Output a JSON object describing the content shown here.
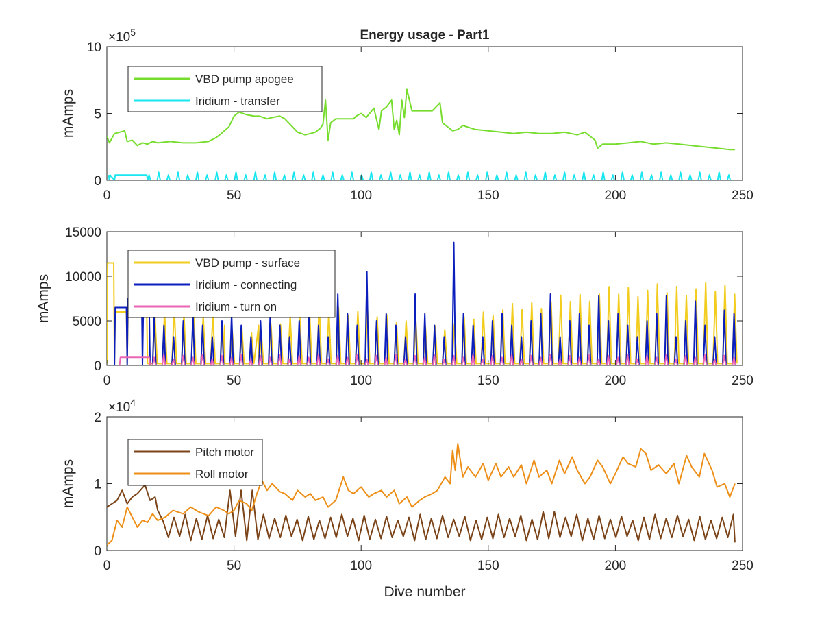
{
  "figure": {
    "title": "Energy usage - Part1",
    "xlabel": "Dive number"
  },
  "chart_data": [
    {
      "type": "line",
      "title": "Energy usage - Part1",
      "xlabel": "",
      "ylabel": "mAmps",
      "xlim": [
        0,
        250
      ],
      "ylim": [
        0,
        1000000
      ],
      "xticks": [
        "0",
        "50",
        "100",
        "150",
        "200",
        "250"
      ],
      "yticks": [
        "0",
        "5",
        "10"
      ],
      "ytick_values": [
        0,
        500000,
        1000000
      ],
      "exponent": {
        "base": "×10",
        "power": "5"
      },
      "grid": false,
      "legend_position": "top-left",
      "series": [
        {
          "name": "VBD pump apogee",
          "color": "#77dd2d",
          "kind": "smooth",
          "x": [
            0,
            1,
            3,
            5,
            7,
            8,
            10,
            12,
            14,
            16,
            18,
            20,
            25,
            30,
            35,
            40,
            43,
            45,
            48,
            50,
            52,
            55,
            58,
            60,
            63,
            65,
            68,
            70,
            73,
            75,
            78,
            80,
            82,
            84,
            85,
            86,
            87,
            88,
            90,
            92,
            95,
            97,
            98,
            100,
            102,
            105,
            107,
            108,
            110,
            112,
            113,
            114,
            115,
            116,
            117,
            118,
            120,
            122,
            125,
            128,
            130,
            131,
            132,
            134,
            136,
            138,
            140,
            145,
            150,
            155,
            160,
            165,
            170,
            175,
            180,
            185,
            188,
            190,
            192,
            193,
            195,
            200,
            205,
            210,
            215,
            220,
            225,
            230,
            235,
            240,
            245,
            247
          ],
          "y": [
            330000,
            280000,
            350000,
            360000,
            370000,
            290000,
            300000,
            260000,
            280000,
            270000,
            290000,
            280000,
            290000,
            280000,
            280000,
            290000,
            320000,
            350000,
            400000,
            480000,
            510000,
            490000,
            480000,
            480000,
            460000,
            470000,
            480000,
            460000,
            400000,
            360000,
            340000,
            350000,
            360000,
            390000,
            420000,
            600000,
            300000,
            430000,
            460000,
            460000,
            460000,
            460000,
            480000,
            500000,
            470000,
            540000,
            380000,
            520000,
            550000,
            600000,
            380000,
            450000,
            340000,
            600000,
            470000,
            680000,
            520000,
            520000,
            520000,
            520000,
            560000,
            580000,
            430000,
            400000,
            370000,
            380000,
            410000,
            380000,
            370000,
            360000,
            350000,
            360000,
            350000,
            350000,
            360000,
            340000,
            360000,
            330000,
            300000,
            240000,
            270000,
            270000,
            280000,
            290000,
            270000,
            280000,
            270000,
            260000,
            250000,
            240000,
            230000,
            230000
          ]
        },
        {
          "name": "Iridium - transfer",
          "color": "#19e6ef",
          "kind": "spike",
          "base": 0,
          "x0": 16,
          "x1": 247,
          "period": 3.8,
          "width": 1.2,
          "amps": [
            40000,
            60000,
            40000,
            60000
          ],
          "extra": [
            [
              1,
              1,
              40000
            ],
            [
              3,
              16,
              40000
            ]
          ]
        }
      ]
    },
    {
      "type": "line",
      "title": "",
      "xlabel": "",
      "ylabel": "mAmps",
      "xlim": [
        0,
        250
      ],
      "ylim": [
        0,
        15000
      ],
      "xticks": [
        "0",
        "50",
        "100",
        "150",
        "200",
        "250"
      ],
      "yticks": [
        "0",
        "5000",
        "10000",
        "15000"
      ],
      "ytick_values": [
        0,
        5000,
        10000,
        15000
      ],
      "grid": false,
      "legend_position": "top-left",
      "series": [
        {
          "name": "VBD pump - surface",
          "color": "#f2cc1e",
          "kind": "spike",
          "base": 200,
          "x0": 18,
          "x1": 247,
          "period": 3.8,
          "width": 1.8,
          "amps": [
            5500,
            6500,
            7000,
            5000
          ],
          "trend": [
            [
              18,
              6500
            ],
            [
              40,
              6500
            ],
            [
              45,
              4500
            ],
            [
              60,
              4200
            ],
            [
              80,
              7000
            ],
            [
              100,
              6500
            ],
            [
              130,
              4500
            ],
            [
              150,
              6500
            ],
            [
              180,
              8000
            ],
            [
              200,
              9000
            ],
            [
              247,
              9400
            ]
          ],
          "extra": [
            [
              0,
              3,
              11500
            ],
            [
              3,
              8,
              6000
            ],
            [
              8,
              16,
              5500
            ],
            [
              46,
              60,
              4500
            ]
          ]
        },
        {
          "name": "Iridium - connecting",
          "color": "#0c1fbd",
          "kind": "spike",
          "base": 0,
          "x0": 18,
          "x1": 247,
          "period": 3.8,
          "width": 1.3,
          "amps": [
            5800,
            4500,
            3200,
            5000
          ],
          "peaks": [
            [
              100,
              10500
            ],
            [
              137,
              13800
            ],
            [
              90,
              8000
            ],
            [
              119,
              8000
            ],
            [
              175,
              8000
            ],
            [
              191,
              7800
            ],
            [
              220,
              7800
            ],
            [
              231,
              7200
            ],
            [
              244,
              6200
            ]
          ],
          "extra": [
            [
              3,
              8,
              6500
            ],
            [
              8,
              14,
              7500
            ],
            [
              14,
              17,
              5500
            ]
          ]
        },
        {
          "name": "Iridium - turn on",
          "color": "#e866b4",
          "kind": "spike",
          "base": 0,
          "x0": 18,
          "x1": 247,
          "period": 3.8,
          "width": 1.2,
          "amps": [
            900,
            1200,
            700,
            1100
          ],
          "extra": [
            [
              5,
              17,
              900
            ]
          ]
        }
      ]
    },
    {
      "type": "line",
      "title": "",
      "xlabel": "Dive number",
      "ylabel": "mAmps",
      "xlim": [
        0,
        250
      ],
      "ylim": [
        0,
        20000
      ],
      "xticks": [
        "0",
        "50",
        "100",
        "150",
        "200",
        "250"
      ],
      "yticks": [
        "0",
        "1",
        "2"
      ],
      "ytick_values": [
        0,
        10000,
        20000
      ],
      "exponent": {
        "base": "×10",
        "power": "4"
      },
      "grid": false,
      "legend_position": "top-left",
      "series": [
        {
          "name": "Pitch motor",
          "color": "#7b4318",
          "kind": "pitch",
          "x": [
            0,
            2,
            4,
            6,
            8,
            10,
            12,
            15,
            17,
            19,
            20,
            22
          ],
          "y": [
            6500,
            7000,
            7500,
            9000,
            7000,
            8000,
            8500,
            9800,
            7500,
            8000,
            6000,
            4500
          ]
        },
        {
          "name": "Roll motor",
          "color": "#ed8e16",
          "kind": "smooth",
          "x": [
            0,
            2,
            4,
            6,
            8,
            10,
            12,
            14,
            16,
            18,
            20,
            23,
            26,
            30,
            33,
            36,
            40,
            43,
            46,
            48,
            50,
            52,
            55,
            57,
            59,
            61,
            63,
            65,
            68,
            70,
            73,
            75,
            78,
            80,
            82,
            85,
            87,
            90,
            93,
            95,
            97,
            100,
            103,
            105,
            108,
            110,
            113,
            115,
            118,
            120,
            123,
            125,
            128,
            130,
            133,
            135,
            136,
            137,
            138,
            140,
            142,
            145,
            148,
            150,
            153,
            155,
            158,
            160,
            163,
            165,
            168,
            170,
            173,
            175,
            178,
            180,
            183,
            185,
            188,
            190,
            193,
            195,
            198,
            200,
            203,
            205,
            208,
            210,
            212,
            214,
            217,
            220,
            223,
            225,
            228,
            230,
            233,
            235,
            238,
            240,
            243,
            245,
            247
          ],
          "y": [
            800,
            1500,
            4500,
            3500,
            6500,
            5000,
            3500,
            4500,
            4200,
            5500,
            4500,
            5000,
            6000,
            5500,
            6500,
            5800,
            5200,
            6500,
            6000,
            5500,
            6000,
            7500,
            7000,
            6000,
            8500,
            10500,
            9000,
            10000,
            8800,
            8500,
            7500,
            9000,
            8000,
            8500,
            7500,
            8000,
            6500,
            7500,
            11000,
            9000,
            8500,
            9500,
            8000,
            8500,
            9000,
            8000,
            9000,
            7000,
            8000,
            6500,
            7500,
            8000,
            8500,
            9000,
            11000,
            10000,
            15000,
            12000,
            16000,
            11000,
            12500,
            11000,
            13000,
            10500,
            13000,
            11000,
            12500,
            11000,
            12800,
            10000,
            13500,
            11000,
            12000,
            10000,
            13500,
            11500,
            14000,
            12000,
            10000,
            11000,
            13500,
            12500,
            10000,
            11500,
            14000,
            13000,
            12500,
            15200,
            14500,
            12000,
            12800,
            11500,
            13000,
            10000,
            14200,
            12500,
            11000,
            14500,
            12000,
            9500,
            10000,
            8000,
            10000
          ]
        }
      ]
    }
  ]
}
